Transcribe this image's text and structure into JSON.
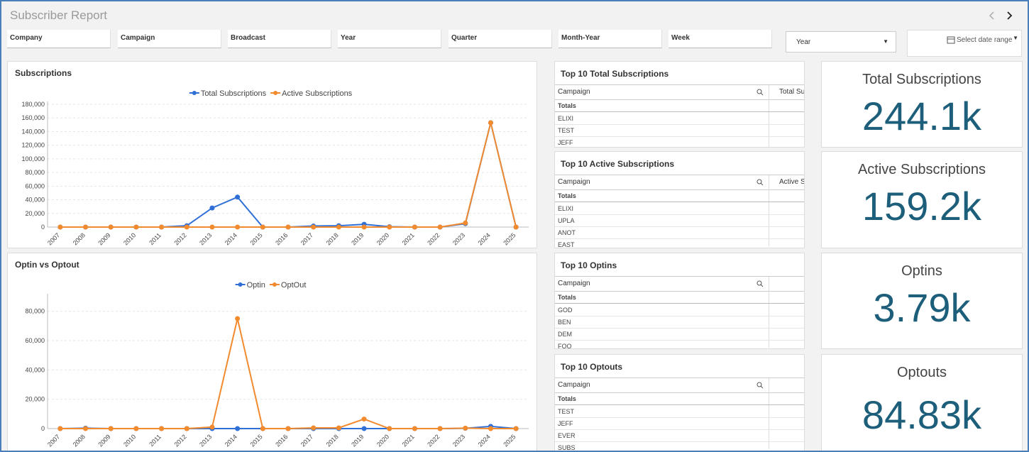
{
  "header": {
    "title": "Subscriber Report"
  },
  "filters": [
    "Company",
    "Campaign",
    "Broadcast",
    "Year",
    "Quarter",
    "Month-Year",
    "Week"
  ],
  "period_select": "Year",
  "date_range": "Select date range",
  "chart_data": [
    {
      "type": "line",
      "title": "Subscriptions",
      "categories": [
        "2007",
        "2008",
        "2009",
        "2010",
        "2011",
        "2012",
        "2013",
        "2014",
        "2015",
        "2016",
        "2017",
        "2018",
        "2019",
        "2020",
        "2021",
        "2022",
        "2023",
        "2024",
        "2025"
      ],
      "series": [
        {
          "name": "Total Subscriptions",
          "color": "#2f6fd6",
          "values": [
            0,
            0,
            0,
            0,
            0,
            2000,
            28000,
            44000,
            0,
            0,
            1500,
            2000,
            4000,
            500,
            0,
            0,
            5000,
            153000,
            0
          ]
        },
        {
          "name": "Active Subscriptions",
          "color": "#f28a2e",
          "values": [
            0,
            0,
            0,
            0,
            0,
            0,
            0,
            0,
            0,
            0,
            0,
            0,
            0,
            0,
            0,
            0,
            6000,
            153000,
            0
          ]
        }
      ],
      "ylim": [
        0,
        180000
      ],
      "yticks": [
        0,
        {
          "value": 20000,
          "label": "20,000"
        },
        {
          "value": 40000,
          "label": "40,000"
        },
        {
          "value": 60000,
          "label": "60,000"
        },
        {
          "value": 80000,
          "label": "80,000"
        },
        {
          "value": 100000,
          "label": "100,000"
        },
        {
          "value": 120000,
          "label": "120,000"
        },
        {
          "value": 140000,
          "label": "140,000"
        },
        {
          "value": 160000,
          "label": "160,000"
        },
        {
          "value": 180000,
          "label": "180,000"
        }
      ],
      "grid": true,
      "legend": "top"
    },
    {
      "type": "line",
      "title": "Optin vs Optout",
      "categories": [
        "2007",
        "2008",
        "2009",
        "2010",
        "2011",
        "2012",
        "2013",
        "2014",
        "2015",
        "2016",
        "2017",
        "2018",
        "2019",
        "2020",
        "2021",
        "2022",
        "2023",
        "2024",
        "2025"
      ],
      "series": [
        {
          "name": "Optin",
          "color": "#2f6fd6",
          "values": [
            0,
            300,
            0,
            0,
            0,
            0,
            0,
            0,
            0,
            0,
            0,
            0,
            0,
            0,
            0,
            0,
            200,
            1500,
            0
          ]
        },
        {
          "name": "OptOut",
          "color": "#f28a2e",
          "values": [
            0,
            0,
            0,
            0,
            0,
            0,
            1000,
            75000,
            0,
            0,
            500,
            500,
            6500,
            0,
            0,
            0,
            300,
            0,
            0
          ]
        }
      ],
      "ylim": [
        0,
        90000
      ],
      "yticks": [
        0,
        {
          "value": 20000,
          "label": "20,000"
        },
        {
          "value": 40000,
          "label": "40,000"
        },
        {
          "value": 60000,
          "label": "60,000"
        },
        {
          "value": 80000,
          "label": "80,000"
        }
      ],
      "grid": true,
      "legend": "top"
    }
  ],
  "tables": [
    {
      "title": "Top 10 Total Subscriptions",
      "columns": [
        "Campaign",
        "Total Sub"
      ],
      "totals": "Totals",
      "rows": [
        "ELIXI",
        "TEST",
        "JEFF"
      ]
    },
    {
      "title": "Top 10 Active Subscriptions",
      "columns": [
        "Campaign",
        "Active Sub"
      ],
      "totals": "Totals",
      "rows": [
        "ELIXI",
        "UPLA",
        "ANOT",
        "EAST"
      ]
    },
    {
      "title": "Top 10 Optins",
      "columns": [
        "Campaign"
      ],
      "totals": "Totals",
      "rows": [
        "GOD",
        "BEN",
        "DEM",
        "FOO"
      ]
    },
    {
      "title": "Top 10 Optouts",
      "columns": [
        "Campaign"
      ],
      "totals": "Totals",
      "rows": [
        "TEST",
        "JEFF",
        "EVER",
        "SUBS"
      ]
    }
  ],
  "kpis": [
    {
      "label": "Total Subscriptions",
      "value": "244.1k"
    },
    {
      "label": "Active Subscriptions",
      "value": "159.2k"
    },
    {
      "label": "Optins",
      "value": "3.79k"
    },
    {
      "label": "Optouts",
      "value": "84.83k"
    }
  ]
}
